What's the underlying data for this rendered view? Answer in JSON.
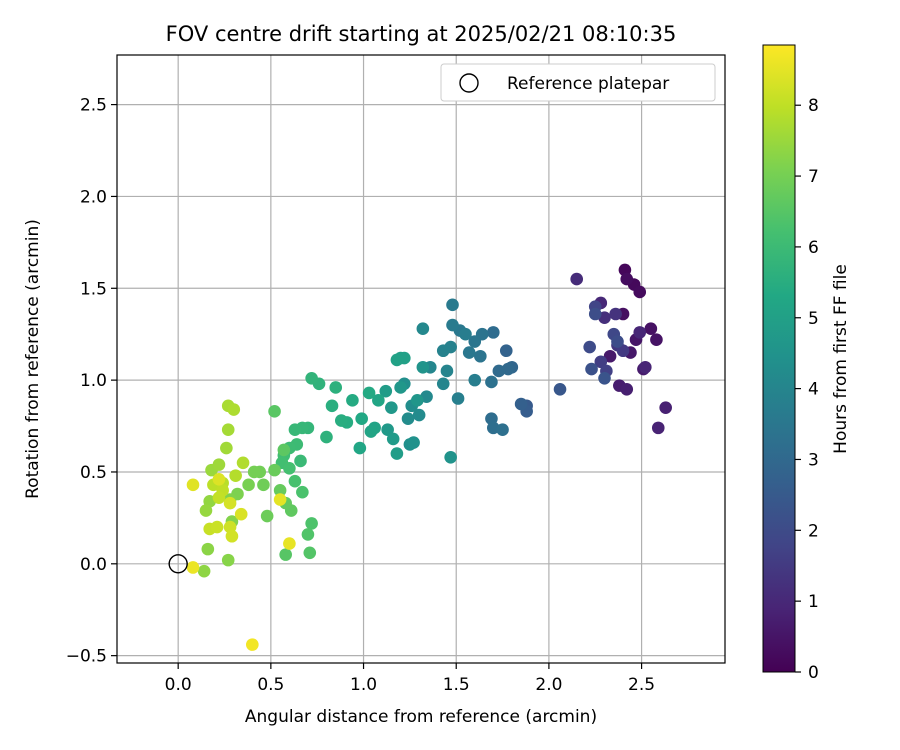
{
  "chart_data": {
    "type": "scatter",
    "title": "FOV centre drift starting at 2025/02/21 08:10:35",
    "xlabel": "Angular distance from reference (arcmin)",
    "ylabel": "Rotation from reference (arcmin)",
    "xlim": [
      -0.33,
      2.95
    ],
    "ylim": [
      -0.54,
      2.77
    ],
    "xticks": [
      0.0,
      0.5,
      1.0,
      1.5,
      2.0,
      2.5
    ],
    "xtick_labels": [
      "0.0",
      "0.5",
      "1.0",
      "1.5",
      "2.0",
      "2.5"
    ],
    "yticks": [
      -0.5,
      0.0,
      0.5,
      1.0,
      1.5,
      2.0,
      2.5
    ],
    "ytick_labels": [
      "−0.5",
      "0.0",
      "0.5",
      "1.0",
      "1.5",
      "2.0",
      "2.5"
    ],
    "grid": true,
    "legend": {
      "placement": "top-right",
      "entries": [
        "Reference platepar"
      ]
    },
    "reference_point": {
      "x": 0.0,
      "y": 0.0,
      "marker": "hollow-circle"
    },
    "colorbar": {
      "label": "Hours from first FF file",
      "colormap": "viridis",
      "range": [
        0,
        8.85
      ],
      "ticks": [
        0,
        1,
        2,
        3,
        4,
        5,
        6,
        7,
        8
      ],
      "tick_labels": [
        "0",
        "1",
        "2",
        "3",
        "4",
        "5",
        "6",
        "7",
        "8"
      ]
    },
    "series_columns": [
      "x",
      "y",
      "hours"
    ],
    "points": [
      [
        2.41,
        1.6,
        0.15
      ],
      [
        2.46,
        1.52,
        0.2
      ],
      [
        2.49,
        1.48,
        0.25
      ],
      [
        2.42,
        1.55,
        0.3
      ],
      [
        2.4,
        1.36,
        0.35
      ],
      [
        2.55,
        1.28,
        0.4
      ],
      [
        2.58,
        1.22,
        0.45
      ],
      [
        2.47,
        1.22,
        0.5
      ],
      [
        2.44,
        1.15,
        0.55
      ],
      [
        2.33,
        1.13,
        0.6
      ],
      [
        2.51,
        1.06,
        0.65
      ],
      [
        2.38,
        0.97,
        0.7
      ],
      [
        2.42,
        0.95,
        0.75
      ],
      [
        2.63,
        0.85,
        0.8
      ],
      [
        2.59,
        0.74,
        0.85
      ],
      [
        2.52,
        1.07,
        0.9
      ],
      [
        2.49,
        1.26,
        0.95
      ],
      [
        2.28,
        1.42,
        1.0
      ],
      [
        2.15,
        1.55,
        1.1
      ],
      [
        2.3,
        1.34,
        1.2
      ],
      [
        2.36,
        1.36,
        1.3
      ],
      [
        2.37,
        1.19,
        1.4
      ],
      [
        2.4,
        1.16,
        1.5
      ],
      [
        2.28,
        1.1,
        1.6
      ],
      [
        2.31,
        1.05,
        1.7
      ],
      [
        2.25,
        1.4,
        1.8
      ],
      [
        2.35,
        1.25,
        1.9
      ],
      [
        2.22,
        1.18,
        2.0
      ],
      [
        2.37,
        1.21,
        2.05
      ],
      [
        2.25,
        1.36,
        2.1
      ],
      [
        2.23,
        1.06,
        2.2
      ],
      [
        2.3,
        1.01,
        2.3
      ],
      [
        2.06,
        0.95,
        2.4
      ],
      [
        1.88,
        0.86,
        2.5
      ],
      [
        1.88,
        0.83,
        2.6
      ],
      [
        1.85,
        0.87,
        2.7
      ],
      [
        1.77,
        1.16,
        2.8
      ],
      [
        1.8,
        1.07,
        2.9
      ],
      [
        1.78,
        1.06,
        3.0
      ],
      [
        1.73,
        1.05,
        3.05
      ],
      [
        1.7,
        1.26,
        3.1
      ],
      [
        1.69,
        0.79,
        3.15
      ],
      [
        1.7,
        0.74,
        3.2
      ],
      [
        1.75,
        0.73,
        3.25
      ],
      [
        1.69,
        0.99,
        3.3
      ],
      [
        1.64,
        1.25,
        3.35
      ],
      [
        1.63,
        1.13,
        3.4
      ],
      [
        1.6,
        1.21,
        3.45
      ],
      [
        1.57,
        1.15,
        3.5
      ],
      [
        1.52,
        1.27,
        3.55
      ],
      [
        1.48,
        1.41,
        3.6
      ],
      [
        1.48,
        1.3,
        3.65
      ],
      [
        1.55,
        1.25,
        3.7
      ],
      [
        1.6,
        1.0,
        3.75
      ],
      [
        1.51,
        0.9,
        3.8
      ],
      [
        1.47,
        1.18,
        3.85
      ],
      [
        1.43,
        1.16,
        3.9
      ],
      [
        1.45,
        1.05,
        3.95
      ],
      [
        1.43,
        0.98,
        4.0
      ],
      [
        1.36,
        1.07,
        4.05
      ],
      [
        1.32,
        1.28,
        4.1
      ],
      [
        1.34,
        0.91,
        4.15
      ],
      [
        1.3,
        0.81,
        4.2
      ],
      [
        1.24,
        0.79,
        4.25
      ],
      [
        1.26,
        0.86,
        4.3
      ],
      [
        1.22,
        0.98,
        4.35
      ],
      [
        1.25,
        0.65,
        4.4
      ],
      [
        1.27,
        0.66,
        4.45
      ],
      [
        1.47,
        0.58,
        4.5
      ],
      [
        1.32,
        1.07,
        4.55
      ],
      [
        1.29,
        0.89,
        4.6
      ],
      [
        1.2,
        0.96,
        4.65
      ],
      [
        1.15,
        0.85,
        4.7
      ],
      [
        1.13,
        0.73,
        4.75
      ],
      [
        1.16,
        0.68,
        4.8
      ],
      [
        1.12,
        0.94,
        4.85
      ],
      [
        1.18,
        0.6,
        4.9
      ],
      [
        1.2,
        1.12,
        4.95
      ],
      [
        1.22,
        1.12,
        5.0
      ],
      [
        1.18,
        1.11,
        5.05
      ],
      [
        1.06,
        0.74,
        5.1
      ],
      [
        1.04,
        0.72,
        5.15
      ],
      [
        1.08,
        0.89,
        5.2
      ],
      [
        0.98,
        0.63,
        5.25
      ],
      [
        0.99,
        0.79,
        5.3
      ],
      [
        1.03,
        0.93,
        5.35
      ],
      [
        0.94,
        0.89,
        5.4
      ],
      [
        0.91,
        0.77,
        5.45
      ],
      [
        0.88,
        0.78,
        5.5
      ],
      [
        0.83,
        0.86,
        5.55
      ],
      [
        0.85,
        0.96,
        5.6
      ],
      [
        0.8,
        0.69,
        5.65
      ],
      [
        0.76,
        0.98,
        5.7
      ],
      [
        0.72,
        1.01,
        5.75
      ],
      [
        0.7,
        0.74,
        5.8
      ],
      [
        0.67,
        0.74,
        5.85
      ],
      [
        0.63,
        0.73,
        5.9
      ],
      [
        0.66,
        0.56,
        5.95
      ],
      [
        0.64,
        0.65,
        6.0
      ],
      [
        0.6,
        0.63,
        6.05
      ],
      [
        0.57,
        0.59,
        6.1
      ],
      [
        0.56,
        0.55,
        6.15
      ],
      [
        0.6,
        0.52,
        6.2
      ],
      [
        0.63,
        0.45,
        6.25
      ],
      [
        0.67,
        0.39,
        6.3
      ],
      [
        0.72,
        0.22,
        6.35
      ],
      [
        0.7,
        0.16,
        6.4
      ],
      [
        0.71,
        0.06,
        6.45
      ],
      [
        0.58,
        0.05,
        6.5
      ],
      [
        0.52,
        0.83,
        6.55
      ],
      [
        0.57,
        0.62,
        6.6
      ],
      [
        0.61,
        0.29,
        6.65
      ],
      [
        0.58,
        0.33,
        6.7
      ],
      [
        0.55,
        0.4,
        6.75
      ],
      [
        0.52,
        0.51,
        6.8
      ],
      [
        0.48,
        0.26,
        6.85
      ],
      [
        0.46,
        0.43,
        6.9
      ],
      [
        0.44,
        0.5,
        6.95
      ],
      [
        0.41,
        0.5,
        7.0
      ],
      [
        0.38,
        0.43,
        7.05
      ],
      [
        0.32,
        0.38,
        7.1
      ],
      [
        0.28,
        0.35,
        7.15
      ],
      [
        0.29,
        0.23,
        7.2
      ],
      [
        0.27,
        0.02,
        7.25
      ],
      [
        0.16,
        0.08,
        7.3
      ],
      [
        0.14,
        -0.04,
        7.35
      ],
      [
        0.17,
        0.34,
        7.4
      ],
      [
        0.15,
        0.29,
        7.45
      ],
      [
        0.18,
        0.51,
        7.5
      ],
      [
        0.22,
        0.54,
        7.55
      ],
      [
        0.26,
        0.63,
        7.6
      ],
      [
        0.27,
        0.73,
        7.65
      ],
      [
        0.27,
        0.86,
        7.7
      ],
      [
        0.3,
        0.84,
        7.75
      ],
      [
        0.35,
        0.55,
        7.8
      ],
      [
        0.31,
        0.48,
        7.85
      ],
      [
        0.24,
        0.44,
        7.9
      ],
      [
        0.19,
        0.43,
        7.95
      ],
      [
        0.24,
        0.4,
        8.0
      ],
      [
        0.22,
        0.36,
        8.05
      ],
      [
        0.17,
        0.19,
        8.1
      ],
      [
        0.21,
        0.2,
        8.15
      ],
      [
        0.28,
        0.2,
        8.2
      ],
      [
        0.29,
        0.15,
        8.25
      ],
      [
        0.28,
        0.33,
        8.3
      ],
      [
        0.34,
        0.27,
        8.35
      ],
      [
        0.22,
        0.46,
        8.4
      ],
      [
        0.08,
        0.43,
        8.45
      ],
      [
        0.55,
        0.35,
        8.5
      ],
      [
        0.6,
        0.11,
        8.55
      ],
      [
        0.08,
        -0.02,
        8.6
      ],
      [
        0.4,
        -0.44,
        8.7
      ]
    ]
  }
}
